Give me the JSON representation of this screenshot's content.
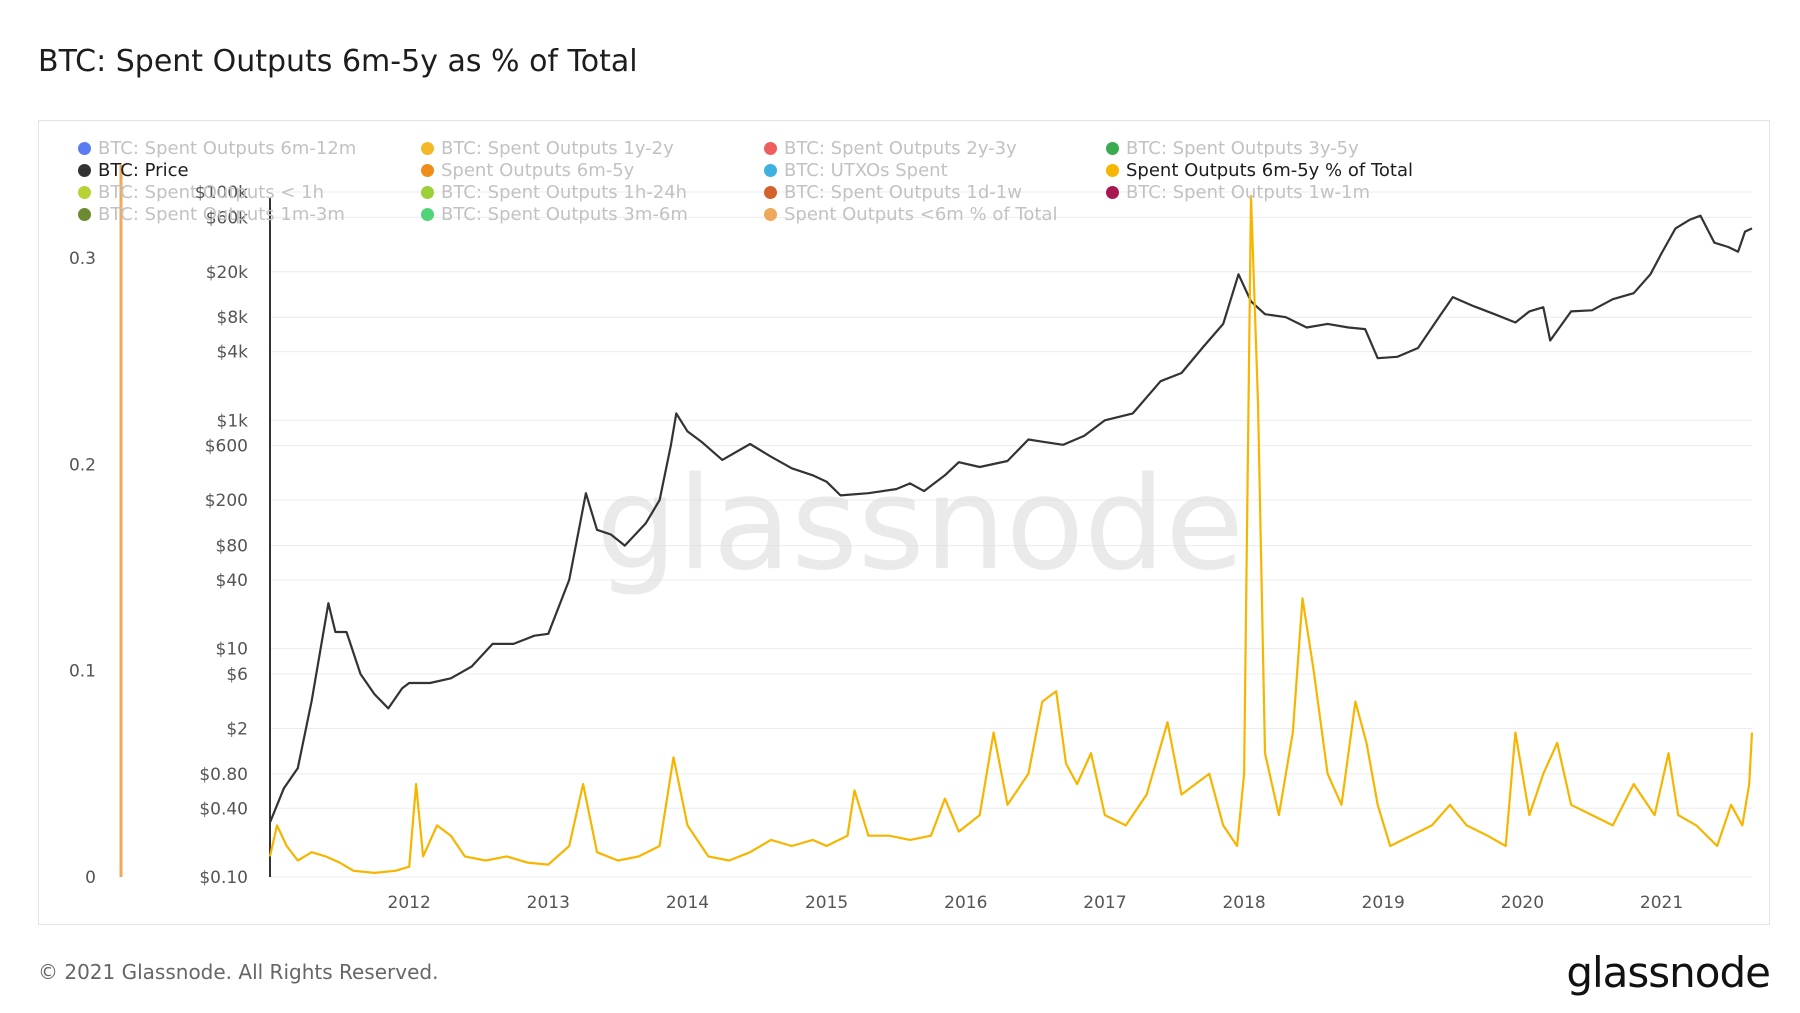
{
  "title": "BTC: Spent Outputs 6m-5y as % of Total",
  "footer": {
    "copyright": "© 2021 Glassnode. All Rights Reserved.",
    "logo": "glassnode"
  },
  "watermark": "glassnode",
  "legend": [
    {
      "label": "BTC: Spent Outputs 6m-12m",
      "color": "#5b7bf0",
      "active": false
    },
    {
      "label": "BTC: Spent Outputs 1y-2y",
      "color": "#f5b829",
      "active": false
    },
    {
      "label": "BTC: Spent Outputs 2y-3y",
      "color": "#ef5d5d",
      "active": false
    },
    {
      "label": "BTC: Spent Outputs 3y-5y",
      "color": "#3aaa50",
      "active": false
    },
    {
      "label": "BTC: Price",
      "color": "#333333",
      "active": true
    },
    {
      "label": "Spent Outputs 6m-5y",
      "color": "#f08c1a",
      "active": false
    },
    {
      "label": "BTC: UTXOs Spent",
      "color": "#3fb1e0",
      "active": false
    },
    {
      "label": "Spent Outputs 6m-5y % of Total",
      "color": "#f7b500",
      "active": true
    },
    {
      "label": "BTC: Spent Outputs < 1h",
      "color": "#b6d334",
      "active": false
    },
    {
      "label": "BTC: Spent Outputs 1h-24h",
      "color": "#9ccf3a",
      "active": false
    },
    {
      "label": "BTC: Spent Outputs 1d-1w",
      "color": "#d4622a",
      "active": false
    },
    {
      "label": "BTC: Spent Outputs 1w-1m",
      "color": "#a8174f",
      "active": false
    },
    {
      "label": "BTC: Spent Outputs 1m-3m",
      "color": "#6b8a32",
      "active": false
    },
    {
      "label": "BTC: Spent Outputs 3m-6m",
      "color": "#4fd47a",
      "active": false
    },
    {
      "label": "Spent Outputs <6m % of Total",
      "color": "#f0a85a",
      "active": false
    }
  ],
  "chart_data": {
    "type": "line",
    "title": "BTC: Spent Outputs 6m-5y as % of Total",
    "x_axis": {
      "ticks": [
        "2012",
        "2013",
        "2014",
        "2015",
        "2016",
        "2017",
        "2018",
        "2019",
        "2020",
        "2021"
      ],
      "range": [
        2011.0,
        2021.65
      ]
    },
    "y_left": {
      "ticks": [
        "0",
        "0.1",
        "0.2",
        "0.3"
      ],
      "range": [
        0,
        0.3
      ],
      "scale": "linear",
      "bar_color": "#f0a85a"
    },
    "y_right": {
      "ticks": [
        "$0.10",
        "$0.40",
        "$0.80",
        "$2",
        "$6",
        "$10",
        "$40",
        "$80",
        "$200",
        "$600",
        "$1k",
        "$4k",
        "$8k",
        "$20k",
        "$60k",
        "$100k"
      ],
      "scale": "log"
    },
    "grid": true,
    "series": [
      {
        "name": "BTC: Price",
        "axis": "right",
        "color": "#333333",
        "points": [
          [
            2011.0,
            0.3
          ],
          [
            2011.1,
            0.6
          ],
          [
            2011.2,
            0.9
          ],
          [
            2011.3,
            3.5
          ],
          [
            2011.42,
            25
          ],
          [
            2011.47,
            14
          ],
          [
            2011.55,
            14
          ],
          [
            2011.65,
            6
          ],
          [
            2011.75,
            4
          ],
          [
            2011.85,
            3
          ],
          [
            2011.95,
            4.5
          ],
          [
            2012.0,
            5
          ],
          [
            2012.15,
            5
          ],
          [
            2012.3,
            5.5
          ],
          [
            2012.45,
            7
          ],
          [
            2012.6,
            11
          ],
          [
            2012.75,
            11
          ],
          [
            2012.9,
            13
          ],
          [
            2013.0,
            13.5
          ],
          [
            2013.15,
            40
          ],
          [
            2013.27,
            230
          ],
          [
            2013.35,
            110
          ],
          [
            2013.45,
            100
          ],
          [
            2013.55,
            80
          ],
          [
            2013.7,
            125
          ],
          [
            2013.8,
            200
          ],
          [
            2013.88,
            600
          ],
          [
            2013.92,
            1150
          ],
          [
            2014.0,
            800
          ],
          [
            2014.1,
            650
          ],
          [
            2014.25,
            450
          ],
          [
            2014.45,
            620
          ],
          [
            2014.6,
            480
          ],
          [
            2014.75,
            380
          ],
          [
            2014.9,
            330
          ],
          [
            2015.0,
            290
          ],
          [
            2015.1,
            220
          ],
          [
            2015.3,
            230
          ],
          [
            2015.5,
            250
          ],
          [
            2015.6,
            280
          ],
          [
            2015.7,
            240
          ],
          [
            2015.85,
            330
          ],
          [
            2015.95,
            430
          ],
          [
            2016.1,
            390
          ],
          [
            2016.3,
            440
          ],
          [
            2016.45,
            680
          ],
          [
            2016.55,
            650
          ],
          [
            2016.7,
            610
          ],
          [
            2016.85,
            730
          ],
          [
            2017.0,
            1000
          ],
          [
            2017.2,
            1150
          ],
          [
            2017.4,
            2200
          ],
          [
            2017.55,
            2600
          ],
          [
            2017.7,
            4300
          ],
          [
            2017.85,
            7000
          ],
          [
            2017.96,
            19000
          ],
          [
            2018.05,
            11000
          ],
          [
            2018.15,
            8500
          ],
          [
            2018.3,
            8000
          ],
          [
            2018.45,
            6500
          ],
          [
            2018.6,
            7000
          ],
          [
            2018.75,
            6500
          ],
          [
            2018.87,
            6300
          ],
          [
            2018.96,
            3500
          ],
          [
            2019.1,
            3600
          ],
          [
            2019.25,
            4300
          ],
          [
            2019.4,
            8000
          ],
          [
            2019.5,
            12000
          ],
          [
            2019.65,
            10000
          ],
          [
            2019.8,
            8500
          ],
          [
            2019.95,
            7200
          ],
          [
            2020.05,
            9000
          ],
          [
            2020.15,
            9800
          ],
          [
            2020.2,
            5000
          ],
          [
            2020.35,
            9000
          ],
          [
            2020.5,
            9200
          ],
          [
            2020.65,
            11500
          ],
          [
            2020.8,
            13000
          ],
          [
            2020.92,
            19000
          ],
          [
            2021.0,
            29000
          ],
          [
            2021.1,
            48000
          ],
          [
            2021.2,
            57000
          ],
          [
            2021.28,
            62000
          ],
          [
            2021.38,
            36000
          ],
          [
            2021.48,
            33000
          ],
          [
            2021.55,
            30000
          ],
          [
            2021.6,
            45000
          ],
          [
            2021.65,
            48000
          ]
        ]
      },
      {
        "name": "Spent Outputs 6m-5y % of Total",
        "axis": "left",
        "color": "#f7b500",
        "points": [
          [
            2011.0,
            0.01
          ],
          [
            2011.05,
            0.025
          ],
          [
            2011.12,
            0.015
          ],
          [
            2011.2,
            0.008
          ],
          [
            2011.3,
            0.012
          ],
          [
            2011.4,
            0.01
          ],
          [
            2011.5,
            0.007
          ],
          [
            2011.6,
            0.003
          ],
          [
            2011.75,
            0.002
          ],
          [
            2011.9,
            0.003
          ],
          [
            2012.0,
            0.005
          ],
          [
            2012.05,
            0.045
          ],
          [
            2012.1,
            0.01
          ],
          [
            2012.2,
            0.025
          ],
          [
            2012.3,
            0.02
          ],
          [
            2012.4,
            0.01
          ],
          [
            2012.55,
            0.008
          ],
          [
            2012.7,
            0.01
          ],
          [
            2012.85,
            0.007
          ],
          [
            2013.0,
            0.006
          ],
          [
            2013.15,
            0.015
          ],
          [
            2013.25,
            0.045
          ],
          [
            2013.35,
            0.012
          ],
          [
            2013.5,
            0.008
          ],
          [
            2013.65,
            0.01
          ],
          [
            2013.8,
            0.015
          ],
          [
            2013.9,
            0.058
          ],
          [
            2014.0,
            0.025
          ],
          [
            2014.15,
            0.01
          ],
          [
            2014.3,
            0.008
          ],
          [
            2014.45,
            0.012
          ],
          [
            2014.6,
            0.018
          ],
          [
            2014.75,
            0.015
          ],
          [
            2014.9,
            0.018
          ],
          [
            2015.0,
            0.015
          ],
          [
            2015.15,
            0.02
          ],
          [
            2015.2,
            0.042
          ],
          [
            2015.3,
            0.02
          ],
          [
            2015.45,
            0.02
          ],
          [
            2015.6,
            0.018
          ],
          [
            2015.75,
            0.02
          ],
          [
            2015.85,
            0.038
          ],
          [
            2015.95,
            0.022
          ],
          [
            2016.1,
            0.03
          ],
          [
            2016.2,
            0.07
          ],
          [
            2016.3,
            0.035
          ],
          [
            2016.45,
            0.05
          ],
          [
            2016.55,
            0.085
          ],
          [
            2016.65,
            0.09
          ],
          [
            2016.72,
            0.055
          ],
          [
            2016.8,
            0.045
          ],
          [
            2016.9,
            0.06
          ],
          [
            2017.0,
            0.03
          ],
          [
            2017.15,
            0.025
          ],
          [
            2017.3,
            0.04
          ],
          [
            2017.45,
            0.075
          ],
          [
            2017.55,
            0.04
          ],
          [
            2017.65,
            0.045
          ],
          [
            2017.75,
            0.05
          ],
          [
            2017.85,
            0.025
          ],
          [
            2017.95,
            0.015
          ],
          [
            2018.0,
            0.05
          ],
          [
            2018.05,
            0.33
          ],
          [
            2018.1,
            0.23
          ],
          [
            2018.15,
            0.06
          ],
          [
            2018.25,
            0.03
          ],
          [
            2018.35,
            0.07
          ],
          [
            2018.42,
            0.135
          ],
          [
            2018.5,
            0.1
          ],
          [
            2018.6,
            0.05
          ],
          [
            2018.7,
            0.035
          ],
          [
            2018.8,
            0.085
          ],
          [
            2018.88,
            0.065
          ],
          [
            2018.96,
            0.035
          ],
          [
            2019.05,
            0.015
          ],
          [
            2019.2,
            0.02
          ],
          [
            2019.35,
            0.025
          ],
          [
            2019.48,
            0.035
          ],
          [
            2019.6,
            0.025
          ],
          [
            2019.75,
            0.02
          ],
          [
            2019.88,
            0.015
          ],
          [
            2019.95,
            0.07
          ],
          [
            2020.05,
            0.03
          ],
          [
            2020.15,
            0.05
          ],
          [
            2020.25,
            0.065
          ],
          [
            2020.35,
            0.035
          ],
          [
            2020.5,
            0.03
          ],
          [
            2020.65,
            0.025
          ],
          [
            2020.8,
            0.045
          ],
          [
            2020.95,
            0.03
          ],
          [
            2021.05,
            0.06
          ],
          [
            2021.12,
            0.03
          ],
          [
            2021.25,
            0.025
          ],
          [
            2021.4,
            0.015
          ],
          [
            2021.5,
            0.035
          ],
          [
            2021.58,
            0.025
          ],
          [
            2021.63,
            0.045
          ],
          [
            2021.65,
            0.07
          ]
        ]
      }
    ]
  }
}
